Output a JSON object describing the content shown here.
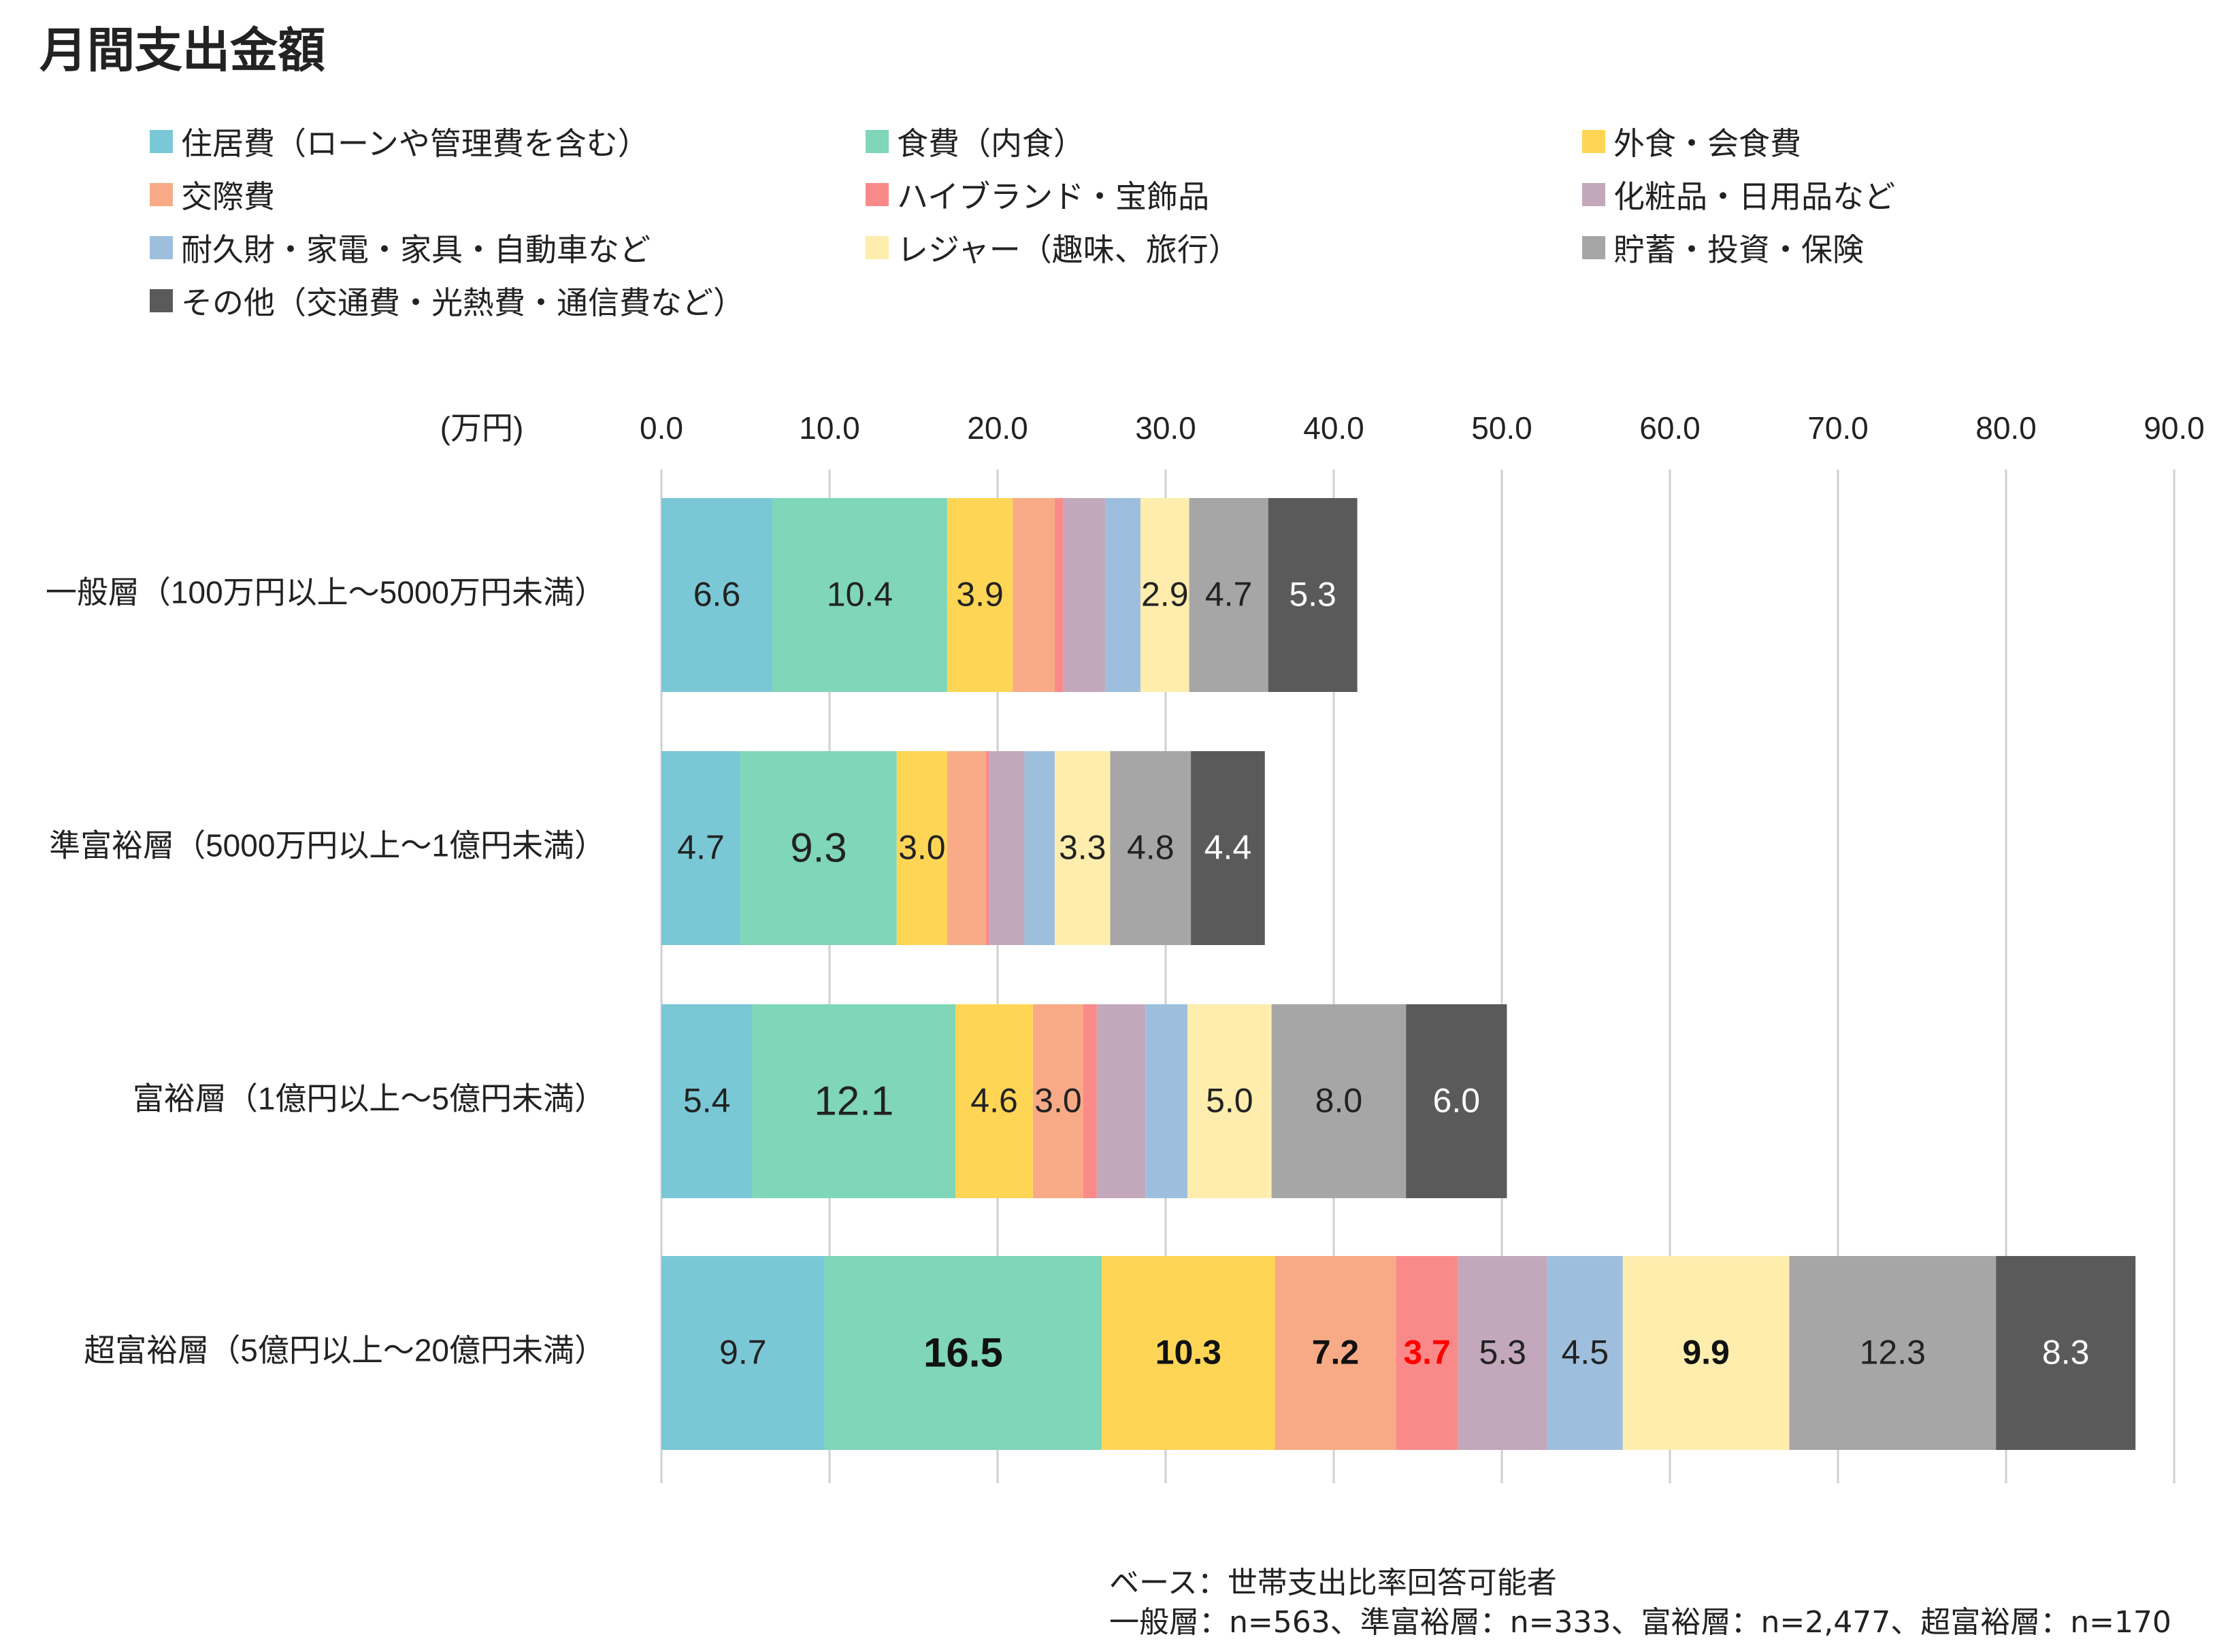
{
  "chart_data": {
    "type": "bar",
    "orientation": "horizontal",
    "stacked": true,
    "title": "月間支出金額",
    "unit_label": "(万円)",
    "xlim": [
      0,
      90
    ],
    "x_ticks": [
      "0.0",
      "10.0",
      "20.0",
      "30.0",
      "40.0",
      "50.0",
      "60.0",
      "70.0",
      "80.0",
      "90.0"
    ],
    "grid": true,
    "legend_position": "top",
    "categories": [
      "一般層（100万円以上～5000万円未満）",
      "準富裕層（5000万円以上～1億円未満）",
      "富裕層（1億円以上～5億円未満）",
      "超富裕層（5億円以上～20億円未満）"
    ],
    "series": [
      {
        "name": "住居費（ローンや管理費を含む）",
        "color": "#7ac8d6",
        "values": [
          6.6,
          4.7,
          5.4,
          9.7
        ],
        "labels": [
          "6.6",
          "4.7",
          "5.4",
          "9.7"
        ],
        "label_color": [
          "#222",
          "#222",
          "#222",
          "#222"
        ],
        "label_bold": [
          false,
          false,
          false,
          false
        ],
        "label_large": [
          false,
          false,
          false,
          false
        ]
      },
      {
        "name": "食費（内食）",
        "color": "#7fd6b8",
        "values": [
          10.4,
          9.3,
          12.1,
          16.5
        ],
        "labels": [
          "10.4",
          "9.3",
          "12.1",
          "16.5"
        ],
        "label_color": [
          "#222",
          "#222",
          "#222",
          "#111"
        ],
        "label_bold": [
          false,
          false,
          false,
          true
        ],
        "label_large": [
          false,
          true,
          true,
          true
        ]
      },
      {
        "name": "外食・会食費",
        "color": "#ffd556",
        "values": [
          3.9,
          3.0,
          4.6,
          10.3
        ],
        "labels": [
          "3.9",
          "3.0",
          "4.6",
          "10.3"
        ],
        "label_color": [
          "#222",
          "#222",
          "#222",
          "#111"
        ],
        "label_bold": [
          false,
          false,
          false,
          true
        ],
        "label_large": [
          false,
          false,
          false,
          false
        ]
      },
      {
        "name": "交際費",
        "color": "#f8aa86",
        "values": [
          2.5,
          2.3,
          3.0,
          7.2
        ],
        "labels": [
          "",
          "",
          "3.0",
          "7.2"
        ],
        "label_color": [
          "#222",
          "#222",
          "#222",
          "#111"
        ],
        "label_bold": [
          false,
          false,
          false,
          true
        ],
        "label_large": [
          false,
          false,
          false,
          false
        ]
      },
      {
        "name": "ハイブランド・宝飾品",
        "color": "#fa8a8a",
        "values": [
          0.5,
          0.2,
          0.8,
          3.7
        ],
        "labels": [
          "",
          "",
          "",
          "3.7"
        ],
        "label_color": [
          "#222",
          "#222",
          "#222",
          "#ff0000"
        ],
        "label_bold": [
          false,
          false,
          false,
          true
        ],
        "label_large": [
          false,
          false,
          false,
          false
        ]
      },
      {
        "name": "化粧品・日用品など",
        "color": "#c3a8bc",
        "values": [
          2.5,
          2.1,
          2.9,
          5.3
        ],
        "labels": [
          "",
          "",
          "",
          "5.3"
        ],
        "label_color": [
          "#222",
          "#222",
          "#222",
          "#222"
        ],
        "label_bold": [
          false,
          false,
          false,
          false
        ],
        "label_large": [
          false,
          false,
          false,
          false
        ]
      },
      {
        "name": "耐久財・家電・家具・自動車など",
        "color": "#9dbfdd",
        "values": [
          2.1,
          1.8,
          2.5,
          4.5
        ],
        "labels": [
          "",
          "",
          "",
          "4.5"
        ],
        "label_color": [
          "#222",
          "#222",
          "#222",
          "#222"
        ],
        "label_bold": [
          false,
          false,
          false,
          false
        ],
        "label_large": [
          false,
          false,
          false,
          false
        ]
      },
      {
        "name": "レジャー（趣味、旅行）",
        "color": "#ffedad",
        "values": [
          2.9,
          3.3,
          5.0,
          9.9
        ],
        "labels": [
          "2.9",
          "3.3",
          "5.0",
          "9.9"
        ],
        "label_color": [
          "#222",
          "#222",
          "#222",
          "#111"
        ],
        "label_bold": [
          false,
          false,
          false,
          true
        ],
        "label_large": [
          false,
          false,
          false,
          false
        ]
      },
      {
        "name": "貯蓄・投資・保険",
        "color": "#a6a6a6",
        "values": [
          4.7,
          4.8,
          8.0,
          12.3
        ],
        "labels": [
          "4.7",
          "4.8",
          "8.0",
          "12.3"
        ],
        "label_color": [
          "#222",
          "#222",
          "#222",
          "#222"
        ],
        "label_bold": [
          false,
          false,
          false,
          false
        ],
        "label_large": [
          false,
          false,
          false,
          false
        ]
      },
      {
        "name": "その他（交通費・光熱費・通信費など）",
        "color": "#5a5a5a",
        "values": [
          5.3,
          4.4,
          6.0,
          8.3
        ],
        "labels": [
          "5.3",
          "4.4",
          "6.0",
          "8.3"
        ],
        "label_color": [
          "#ffffff",
          "#ffffff",
          "#ffffff",
          "#ffffff"
        ],
        "label_bold": [
          false,
          false,
          false,
          false
        ],
        "label_large": [
          false,
          false,
          false,
          false
        ]
      }
    ]
  },
  "notes": {
    "base": "ベース：世帯支出比率回答可能者",
    "sample_sizes": "一般層：n=563、準富裕層：n=333、富裕層：n=2,477、超富裕層：n=170"
  }
}
